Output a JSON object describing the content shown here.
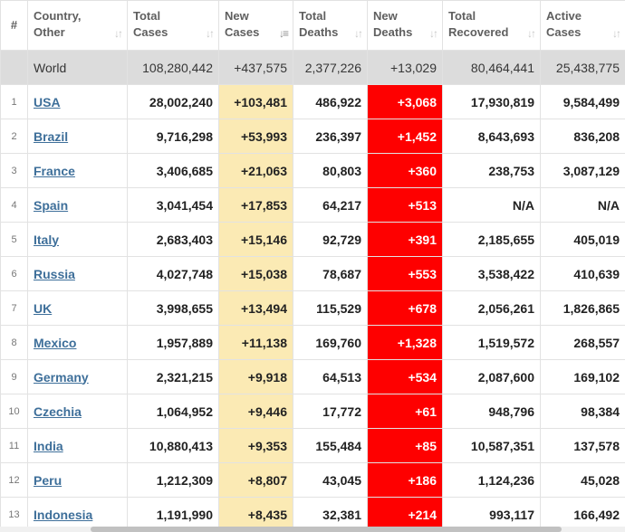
{
  "headers": {
    "index": "#",
    "country": [
      "Country,",
      "Other"
    ],
    "total_cases": [
      "Total",
      "Cases"
    ],
    "new_cases": [
      "New",
      "Cases"
    ],
    "total_deaths": [
      "Total",
      "Deaths"
    ],
    "new_deaths": [
      "New",
      "Deaths"
    ],
    "total_recovered": [
      "Total",
      "Recovered"
    ],
    "active_cases": [
      "Active",
      "Cases"
    ]
  },
  "sort_icons": {
    "inactive": "↓↑",
    "active": "↓≡"
  },
  "world": {
    "label": "World",
    "total_cases": "108,280,442",
    "new_cases": "+437,575",
    "total_deaths": "2,377,226",
    "new_deaths": "+13,029",
    "total_recovered": "80,464,441",
    "active_cases": "25,438,775"
  },
  "rows": [
    {
      "index": "1",
      "country": "USA",
      "total_cases": "28,002,240",
      "new_cases": "+103,481",
      "total_deaths": "486,922",
      "new_deaths": "+3,068",
      "total_recovered": "17,930,819",
      "active_cases": "9,584,499"
    },
    {
      "index": "2",
      "country": "Brazil",
      "total_cases": "9,716,298",
      "new_cases": "+53,993",
      "total_deaths": "236,397",
      "new_deaths": "+1,452",
      "total_recovered": "8,643,693",
      "active_cases": "836,208"
    },
    {
      "index": "3",
      "country": "France",
      "total_cases": "3,406,685",
      "new_cases": "+21,063",
      "total_deaths": "80,803",
      "new_deaths": "+360",
      "total_recovered": "238,753",
      "active_cases": "3,087,129"
    },
    {
      "index": "4",
      "country": "Spain",
      "total_cases": "3,041,454",
      "new_cases": "+17,853",
      "total_deaths": "64,217",
      "new_deaths": "+513",
      "total_recovered": "N/A",
      "active_cases": "N/A"
    },
    {
      "index": "5",
      "country": "Italy",
      "total_cases": "2,683,403",
      "new_cases": "+15,146",
      "total_deaths": "92,729",
      "new_deaths": "+391",
      "total_recovered": "2,185,655",
      "active_cases": "405,019"
    },
    {
      "index": "6",
      "country": "Russia",
      "total_cases": "4,027,748",
      "new_cases": "+15,038",
      "total_deaths": "78,687",
      "new_deaths": "+553",
      "total_recovered": "3,538,422",
      "active_cases": "410,639"
    },
    {
      "index": "7",
      "country": "UK",
      "total_cases": "3,998,655",
      "new_cases": "+13,494",
      "total_deaths": "115,529",
      "new_deaths": "+678",
      "total_recovered": "2,056,261",
      "active_cases": "1,826,865"
    },
    {
      "index": "8",
      "country": "Mexico",
      "total_cases": "1,957,889",
      "new_cases": "+11,138",
      "total_deaths": "169,760",
      "new_deaths": "+1,328",
      "total_recovered": "1,519,572",
      "active_cases": "268,557"
    },
    {
      "index": "9",
      "country": "Germany",
      "total_cases": "2,321,215",
      "new_cases": "+9,918",
      "total_deaths": "64,513",
      "new_deaths": "+534",
      "total_recovered": "2,087,600",
      "active_cases": "169,102"
    },
    {
      "index": "10",
      "country": "Czechia",
      "total_cases": "1,064,952",
      "new_cases": "+9,446",
      "total_deaths": "17,772",
      "new_deaths": "+61",
      "total_recovered": "948,796",
      "active_cases": "98,384"
    },
    {
      "index": "11",
      "country": "India",
      "total_cases": "10,880,413",
      "new_cases": "+9,353",
      "total_deaths": "155,484",
      "new_deaths": "+85",
      "total_recovered": "10,587,351",
      "active_cases": "137,578"
    },
    {
      "index": "12",
      "country": "Peru",
      "total_cases": "1,212,309",
      "new_cases": "+8,807",
      "total_deaths": "43,045",
      "new_deaths": "+186",
      "total_recovered": "1,124,236",
      "active_cases": "45,028"
    },
    {
      "index": "13",
      "country": "Indonesia",
      "total_cases": "1,191,990",
      "new_cases": "+8,435",
      "total_deaths": "32,381",
      "new_deaths": "+214",
      "total_recovered": "993,117",
      "active_cases": "166,492"
    }
  ],
  "colors": {
    "new_cases_bg": "#fbeab4",
    "new_deaths_bg": "#fe0000",
    "world_row_bg": "#dcdcdc",
    "country_link": "#3e6f9a"
  }
}
